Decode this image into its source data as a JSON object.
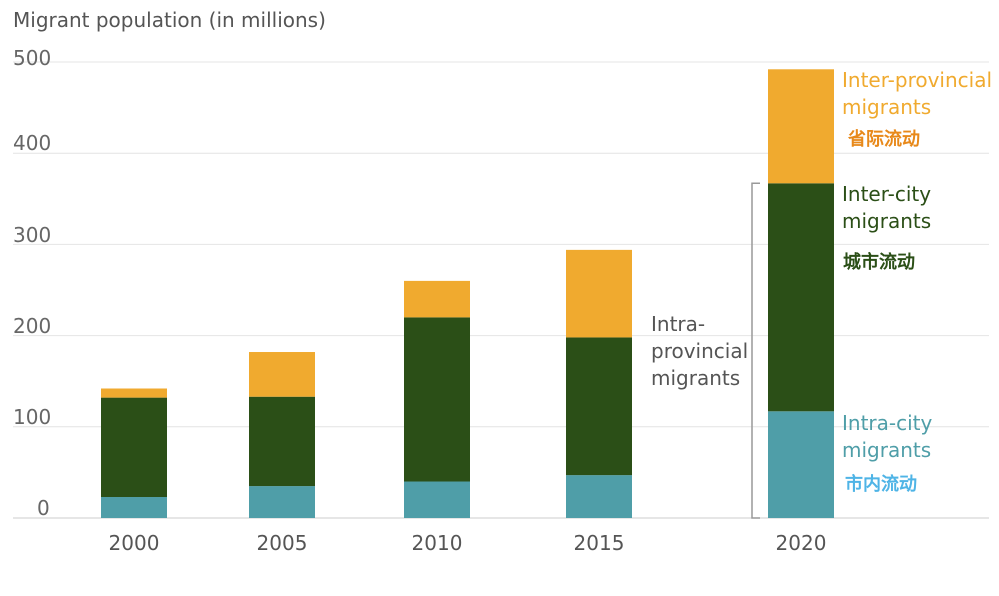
{
  "chart_data": {
    "type": "bar",
    "stacked": true,
    "ylabel": "Migrant population (in millions)",
    "ylim": [
      0,
      500
    ],
    "yticks": [
      "0",
      "100",
      "200",
      "300",
      "400",
      "500"
    ],
    "grid": true,
    "categories": [
      "2000",
      "2005",
      "2010",
      "2015",
      "2020"
    ],
    "series": [
      {
        "name": "Intra-city migrants",
        "name_cn": "市内流动",
        "color": "#4f9ea8",
        "values": [
          23,
          35,
          40,
          47,
          117
        ]
      },
      {
        "name": "Inter-city migrants",
        "name_cn": "城市流动",
        "color": "#2b4f17",
        "values": [
          109,
          98,
          180,
          151,
          250
        ]
      },
      {
        "name": "Inter-provincial migrants",
        "name_cn": "省际流动",
        "color": "#f0aa2f",
        "values": [
          10,
          49,
          40,
          96,
          125
        ]
      }
    ],
    "annotations": {
      "intra_provincial": [
        "Intra-",
        "provincial",
        "migrants"
      ],
      "inter_provincial": [
        "Inter-provincial",
        "migrants"
      ],
      "inter_city": [
        "Inter-city",
        "migrants"
      ],
      "intra_city": [
        "Intra-city",
        "migrants"
      ]
    },
    "annotation_colors": {
      "inter_provincial_text": "#f0aa2f",
      "inter_provincial_cn": "#e8891a",
      "inter_city_text": "#2b4f17",
      "intra_city_text": "#4f9ea8",
      "intra_city_cn": "#4fb4e6",
      "intra_provincial_text": "#555555"
    }
  }
}
